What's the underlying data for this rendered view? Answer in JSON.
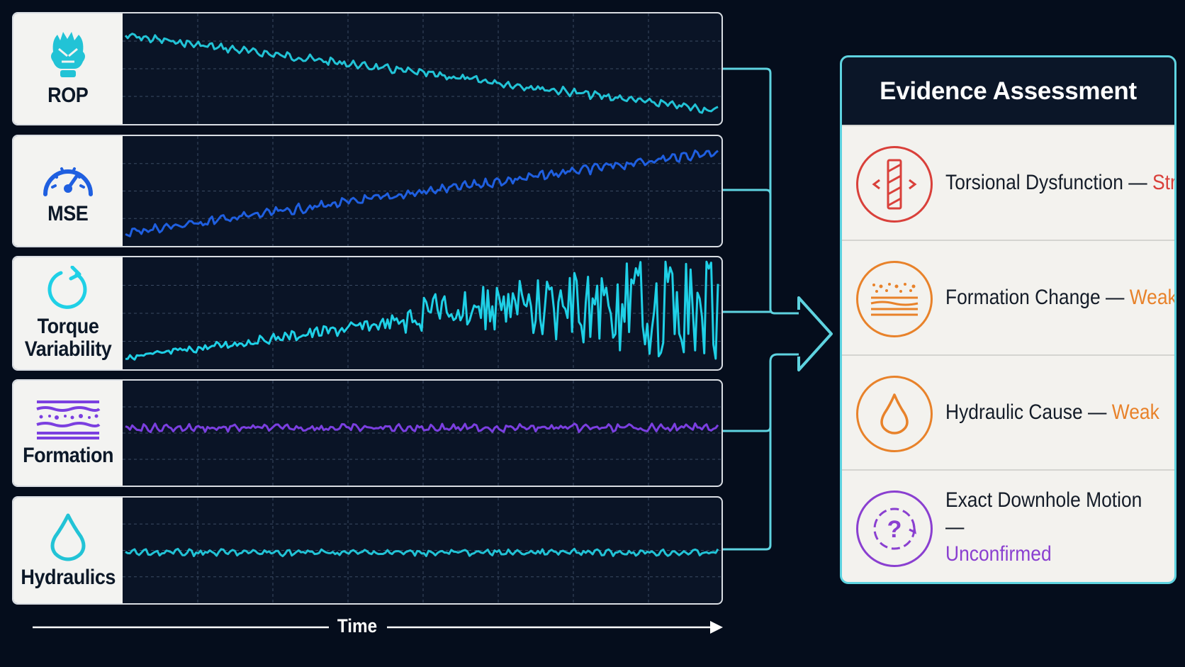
{
  "tracks": [
    {
      "label": "ROP",
      "icon": "drill-bit-icon",
      "color": "#22c3d6"
    },
    {
      "label": "MSE",
      "icon": "gauge-icon",
      "color": "#1f5fe0"
    },
    {
      "label": "Torque Variability",
      "icon": "rotation-icon",
      "color": "#1fd0e6"
    },
    {
      "label": "Formation",
      "icon": "rock-layers-icon",
      "color": "#7b3fe0"
    },
    {
      "label": "Hydraulics",
      "icon": "droplet-icon",
      "color": "#22c3d6"
    }
  ],
  "axis": {
    "label": "Time"
  },
  "assessment": {
    "title": "Evidence Assessment",
    "items": [
      {
        "text": "Torsional Dysfunction —",
        "rating": "Strong",
        "rating_color": "#d9403a",
        "icon": "torsion-icon",
        "icon_color": "#d9403a"
      },
      {
        "text": "Formation Change —",
        "rating": "Weak",
        "rating_color": "#e8822a",
        "icon": "rock-layers-icon",
        "icon_color": "#e8822a"
      },
      {
        "text": "Hydraulic Cause —",
        "rating": "Weak",
        "rating_color": "#e8822a",
        "icon": "droplet-icon",
        "icon_color": "#e8822a"
      },
      {
        "text": "Exact Downhole Motion —",
        "rating": "Unconfirmed",
        "rating_color": "#8a3fd0",
        "icon": "question-icon",
        "icon_color": "#8a3fd0"
      }
    ]
  }
}
